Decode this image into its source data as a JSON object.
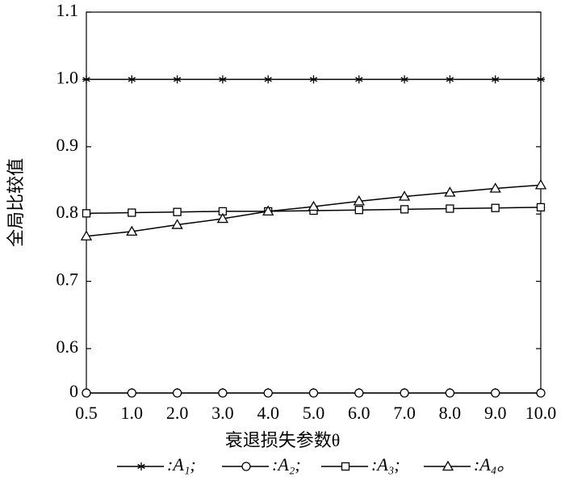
{
  "chart_data": {
    "type": "line",
    "x_label": "衰退损失参数θ",
    "y_label": "全局比较值",
    "categories": [
      "0.5",
      "1.0",
      "2.0",
      "3.0",
      "4.0",
      "5.0",
      "6.0",
      "7.0",
      "8.0",
      "9.0",
      "10.0"
    ],
    "ylim": [
      0,
      1.1
    ],
    "y_break": [
      0,
      0.6
    ],
    "yticks": [
      0,
      0.6,
      0.7,
      0.8,
      0.9,
      {
        "value": 1,
        "label": "1.0"
      },
      1.1
    ],
    "series": [
      {
        "name": ":A₁;",
        "color": "#000000",
        "marker": "star",
        "values": [
          1,
          1,
          1,
          1,
          1,
          1,
          1,
          1,
          1,
          1,
          1
        ]
      },
      {
        "name": ":A₂;",
        "color": "#000000",
        "marker": "circle",
        "values": [
          0,
          0,
          0,
          0,
          0,
          0,
          0,
          0,
          0,
          0,
          0
        ]
      },
      {
        "name": ":A₃;",
        "color": "#000000",
        "marker": "square",
        "values": [
          0.801,
          0.802,
          0.803,
          0.804,
          0.804,
          0.805,
          0.806,
          0.807,
          0.808,
          0.809,
          0.81
        ]
      },
      {
        "name": ":A₄。",
        "color": "#000000",
        "marker": "triangle",
        "values": [
          0.767,
          0.774,
          0.784,
          0.793,
          0.804,
          0.811,
          0.819,
          0.826,
          0.832,
          0.838,
          0.843
        ]
      }
    ]
  }
}
